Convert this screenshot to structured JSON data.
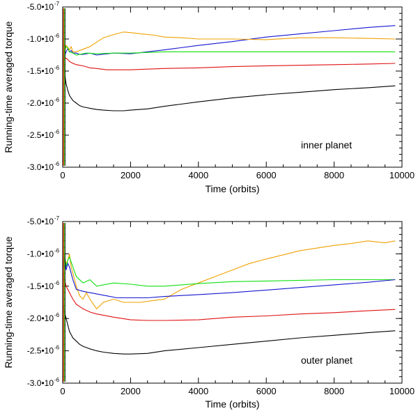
{
  "chart_data": [
    {
      "type": "line",
      "annotation": "inner planet",
      "xlabel": "Time (orbits)",
      "ylabel": "Running-time averaged torque",
      "xlim": [
        0,
        10000
      ],
      "ylim": [
        -3e-06,
        -5e-07
      ],
      "x_ticks": [
        0,
        2000,
        4000,
        6000,
        8000,
        10000
      ],
      "x_tick_labels": [
        "0",
        "2000",
        "4000",
        "6000",
        "8000",
        "10000"
      ],
      "y_ticks": [
        {
          "value": -5e-07,
          "mantissa": "-5.0•10",
          "exp": "-7"
        },
        {
          "value": -1e-06,
          "mantissa": "-1.0•10",
          "exp": "-6"
        },
        {
          "value": -1.5e-06,
          "mantissa": "-1.5•10",
          "exp": "-6"
        },
        {
          "value": -2e-06,
          "mantissa": "-2.0•10",
          "exp": "-6"
        },
        {
          "value": -2.5e-06,
          "mantissa": "-2.5•10",
          "exp": "-6"
        },
        {
          "value": -3e-06,
          "mantissa": "-3.0•10",
          "exp": "-6"
        }
      ],
      "series": [
        {
          "name": "blue",
          "color": "#1515d0",
          "x": [
            20,
            60,
            100,
            150,
            200,
            250,
            300,
            400,
            500,
            600,
            800,
            1000,
            1500,
            2000,
            3000,
            4000,
            5000,
            6000,
            7000,
            8000,
            9000,
            9800
          ],
          "y": [
            -1.4e-06,
            -1.25e-06,
            -1.2e-06,
            -1.15e-06,
            -1.2e-06,
            -1.18e-06,
            -1.22e-06,
            -1.22e-06,
            -1.24e-06,
            -1.24e-06,
            -1.22e-06,
            -1.25e-06,
            -1.22e-06,
            -1.23e-06,
            -1.17e-06,
            -1.1e-06,
            -1.04e-06,
            -9.7e-07,
            -9.2e-07,
            -8.7e-07,
            -8.2e-07,
            -7.9e-07
          ]
        },
        {
          "name": "orange",
          "color": "#f0a000",
          "x": [
            20,
            60,
            100,
            150,
            200,
            250,
            300,
            400,
            600,
            800,
            1000,
            1200,
            1500,
            1800,
            2000,
            2300,
            2700,
            3000,
            3500,
            4000,
            5000,
            6000,
            7000,
            8000,
            9000,
            9800
          ],
          "y": [
            -1.3e-06,
            -1.2e-06,
            -1.1e-06,
            -1.13e-06,
            -1.17e-06,
            -1.12e-06,
            -1.2e-06,
            -1.2e-06,
            -1.16e-06,
            -1.12e-06,
            -1.05e-06,
            -9.8e-07,
            -9.3e-07,
            -8.9e-07,
            -9e-07,
            -9.2e-07,
            -9.4e-07,
            -9.7e-07,
            -9.8e-07,
            -1e-06,
            -1e-06,
            -1.01e-06,
            -9.8e-07,
            -9.8e-07,
            -9.9e-07,
            -1e-06
          ]
        },
        {
          "name": "green",
          "color": "#10e010",
          "x": [
            20,
            60,
            100,
            150,
            200,
            300,
            400,
            500,
            700,
            1000,
            1500,
            2000,
            3000,
            4000,
            5000,
            6000,
            7000,
            8000,
            9000,
            9800
          ],
          "y": [
            -1.3e-06,
            -1.15e-06,
            -1.12e-06,
            -1.14e-06,
            -1.2e-06,
            -1.22e-06,
            -1.25e-06,
            -1.24e-06,
            -1.22e-06,
            -1.23e-06,
            -1.22e-06,
            -1.22e-06,
            -1.2e-06,
            -1.2e-06,
            -1.2e-06,
            -1.2e-06,
            -1.2e-06,
            -1.2e-06,
            -1.2e-06,
            -1.2e-06
          ]
        },
        {
          "name": "red",
          "color": "#e01010",
          "x": [
            20,
            60,
            100,
            150,
            200,
            300,
            400,
            600,
            800,
            1000,
            1300,
            1600,
            2000,
            2500,
            3000,
            4000,
            5000,
            6000,
            7000,
            8000,
            9000,
            9800
          ],
          "y": [
            -1.35e-06,
            -1.3e-06,
            -1.3e-06,
            -1.32e-06,
            -1.35e-06,
            -1.38e-06,
            -1.4e-06,
            -1.42e-06,
            -1.45e-06,
            -1.46e-06,
            -1.48e-06,
            -1.48e-06,
            -1.48e-06,
            -1.47e-06,
            -1.46e-06,
            -1.45e-06,
            -1.43e-06,
            -1.42e-06,
            -1.41e-06,
            -1.4e-06,
            -1.39e-06,
            -1.38e-06
          ]
        },
        {
          "name": "black",
          "color": "#000000",
          "x": [
            20,
            60,
            100,
            150,
            200,
            300,
            400,
            500,
            600,
            800,
            1000,
            1200,
            1500,
            1800,
            2000,
            2500,
            3000,
            4000,
            5000,
            6000,
            7000,
            8000,
            9000,
            9800
          ],
          "y": [
            -1.3e-06,
            -1.55e-06,
            -1.7e-06,
            -1.8e-06,
            -1.88e-06,
            -1.96e-06,
            -2e-06,
            -2.04e-06,
            -2.06e-06,
            -2.08e-06,
            -2.1e-06,
            -2.11e-06,
            -2.12e-06,
            -2.12e-06,
            -2.11e-06,
            -2.09e-06,
            -2.05e-06,
            -1.98e-06,
            -1.92e-06,
            -1.87e-06,
            -1.83e-06,
            -1.79e-06,
            -1.76e-06,
            -1.73e-06
          ]
        }
      ]
    },
    {
      "type": "line",
      "annotation": "outer planet",
      "xlabel": "Time (orbits)",
      "ylabel": "Running-time averaged torque",
      "xlim": [
        0,
        10000
      ],
      "ylim": [
        -3e-06,
        -5e-07
      ],
      "x_ticks": [
        0,
        2000,
        4000,
        6000,
        8000,
        10000
      ],
      "x_tick_labels": [
        "0",
        "2000",
        "4000",
        "6000",
        "8000",
        "10000"
      ],
      "y_ticks": [
        {
          "value": -5e-07,
          "mantissa": "-5.0•10",
          "exp": "-7"
        },
        {
          "value": -1e-06,
          "mantissa": "-1.0•10",
          "exp": "-6"
        },
        {
          "value": -1.5e-06,
          "mantissa": "-1.5•10",
          "exp": "-6"
        },
        {
          "value": -2e-06,
          "mantissa": "-2.0•10",
          "exp": "-6"
        },
        {
          "value": -2.5e-06,
          "mantissa": "-2.5•10",
          "exp": "-6"
        },
        {
          "value": -3e-06,
          "mantissa": "-3.0•10",
          "exp": "-6"
        }
      ],
      "series": [
        {
          "name": "orange",
          "color": "#f0a000",
          "x": [
            20,
            50,
            100,
            150,
            200,
            250,
            300,
            400,
            500,
            600,
            700,
            800,
            1000,
            1200,
            1500,
            1800,
            2000,
            2300,
            2700,
            3000,
            3500,
            4000,
            4500,
            5000,
            5500,
            6000,
            7000,
            8000,
            8500,
            9000,
            9500,
            9800
          ],
          "y": [
            -1.2e-06,
            -1.05e-06,
            -1.15e-06,
            -1.1e-06,
            -1e-06,
            -1.2e-06,
            -1.3e-06,
            -1.5e-06,
            -1.65e-06,
            -1.7e-06,
            -1.6e-06,
            -1.7e-06,
            -1.85e-06,
            -1.75e-06,
            -1.7e-06,
            -1.75e-06,
            -1.75e-06,
            -1.75e-06,
            -1.72e-06,
            -1.7e-06,
            -1.55e-06,
            -1.45e-06,
            -1.35e-06,
            -1.25e-06,
            -1.15e-06,
            -1.08e-06,
            -9.5e-07,
            -8.7e-07,
            -8.4e-07,
            -8e-07,
            -8.3e-07,
            -8e-07
          ]
        },
        {
          "name": "green",
          "color": "#10e010",
          "x": [
            20,
            50,
            100,
            150,
            200,
            300,
            400,
            600,
            800,
            1000,
            1500,
            2000,
            2500,
            3000,
            4000,
            5000,
            6000,
            7000,
            8000,
            9000,
            9800
          ],
          "y": [
            -1.2e-06,
            -1e-06,
            -1.2e-06,
            -1.1e-06,
            -1.05e-06,
            -1.2e-06,
            -1.35e-06,
            -1.45e-06,
            -1.4e-06,
            -1.5e-06,
            -1.45e-06,
            -1.47e-06,
            -1.5e-06,
            -1.5e-06,
            -1.46e-06,
            -1.43e-06,
            -1.42e-06,
            -1.41e-06,
            -1.4e-06,
            -1.4e-06,
            -1.4e-06
          ]
        },
        {
          "name": "blue",
          "color": "#1515d0",
          "x": [
            20,
            50,
            100,
            150,
            200,
            300,
            400,
            600,
            800,
            1000,
            1300,
            1600,
            2000,
            2500,
            3000,
            4000,
            5000,
            6000,
            7000,
            8000,
            9000,
            9800
          ],
          "y": [
            -1.2e-06,
            -1.05e-06,
            -1.25e-06,
            -1.15e-06,
            -1.2e-06,
            -1.4e-06,
            -1.55e-06,
            -1.58e-06,
            -1.6e-06,
            -1.62e-06,
            -1.65e-06,
            -1.68e-06,
            -1.68e-06,
            -1.68e-06,
            -1.66e-06,
            -1.63e-06,
            -1.6e-06,
            -1.56e-06,
            -1.52e-06,
            -1.48e-06,
            -1.44e-06,
            -1.4e-06
          ]
        },
        {
          "name": "red",
          "color": "#e01010",
          "x": [
            20,
            50,
            100,
            150,
            200,
            300,
            400,
            600,
            800,
            1000,
            1500,
            2000,
            2500,
            3000,
            4000,
            5000,
            6000,
            7000,
            8000,
            9000,
            9800
          ],
          "y": [
            -1.3e-06,
            -1.4e-06,
            -1.5e-06,
            -1.55e-06,
            -1.6e-06,
            -1.7e-06,
            -1.78e-06,
            -1.85e-06,
            -1.9e-06,
            -1.93e-06,
            -1.98e-06,
            -2.02e-06,
            -2.03e-06,
            -2.03e-06,
            -2.02e-06,
            -1.98e-06,
            -1.96e-06,
            -1.93e-06,
            -1.91e-06,
            -1.88e-06,
            -1.86e-06
          ]
        },
        {
          "name": "black",
          "color": "#000000",
          "x": [
            20,
            50,
            100,
            150,
            200,
            300,
            400,
            500,
            600,
            800,
            1000,
            1200,
            1500,
            1800,
            2000,
            2500,
            3000,
            4000,
            5000,
            6000,
            7000,
            8000,
            9000,
            9800
          ],
          "y": [
            -1.8e-06,
            -1.9e-06,
            -2e-06,
            -2.1e-06,
            -2.2e-06,
            -2.3e-06,
            -2.35e-06,
            -2.4e-06,
            -2.43e-06,
            -2.47e-06,
            -2.5e-06,
            -2.52e-06,
            -2.54e-06,
            -2.55e-06,
            -2.55e-06,
            -2.54e-06,
            -2.5e-06,
            -2.45e-06,
            -2.4e-06,
            -2.35e-06,
            -2.3e-06,
            -2.26e-06,
            -2.22e-06,
            -2.19e-06
          ]
        }
      ]
    }
  ]
}
